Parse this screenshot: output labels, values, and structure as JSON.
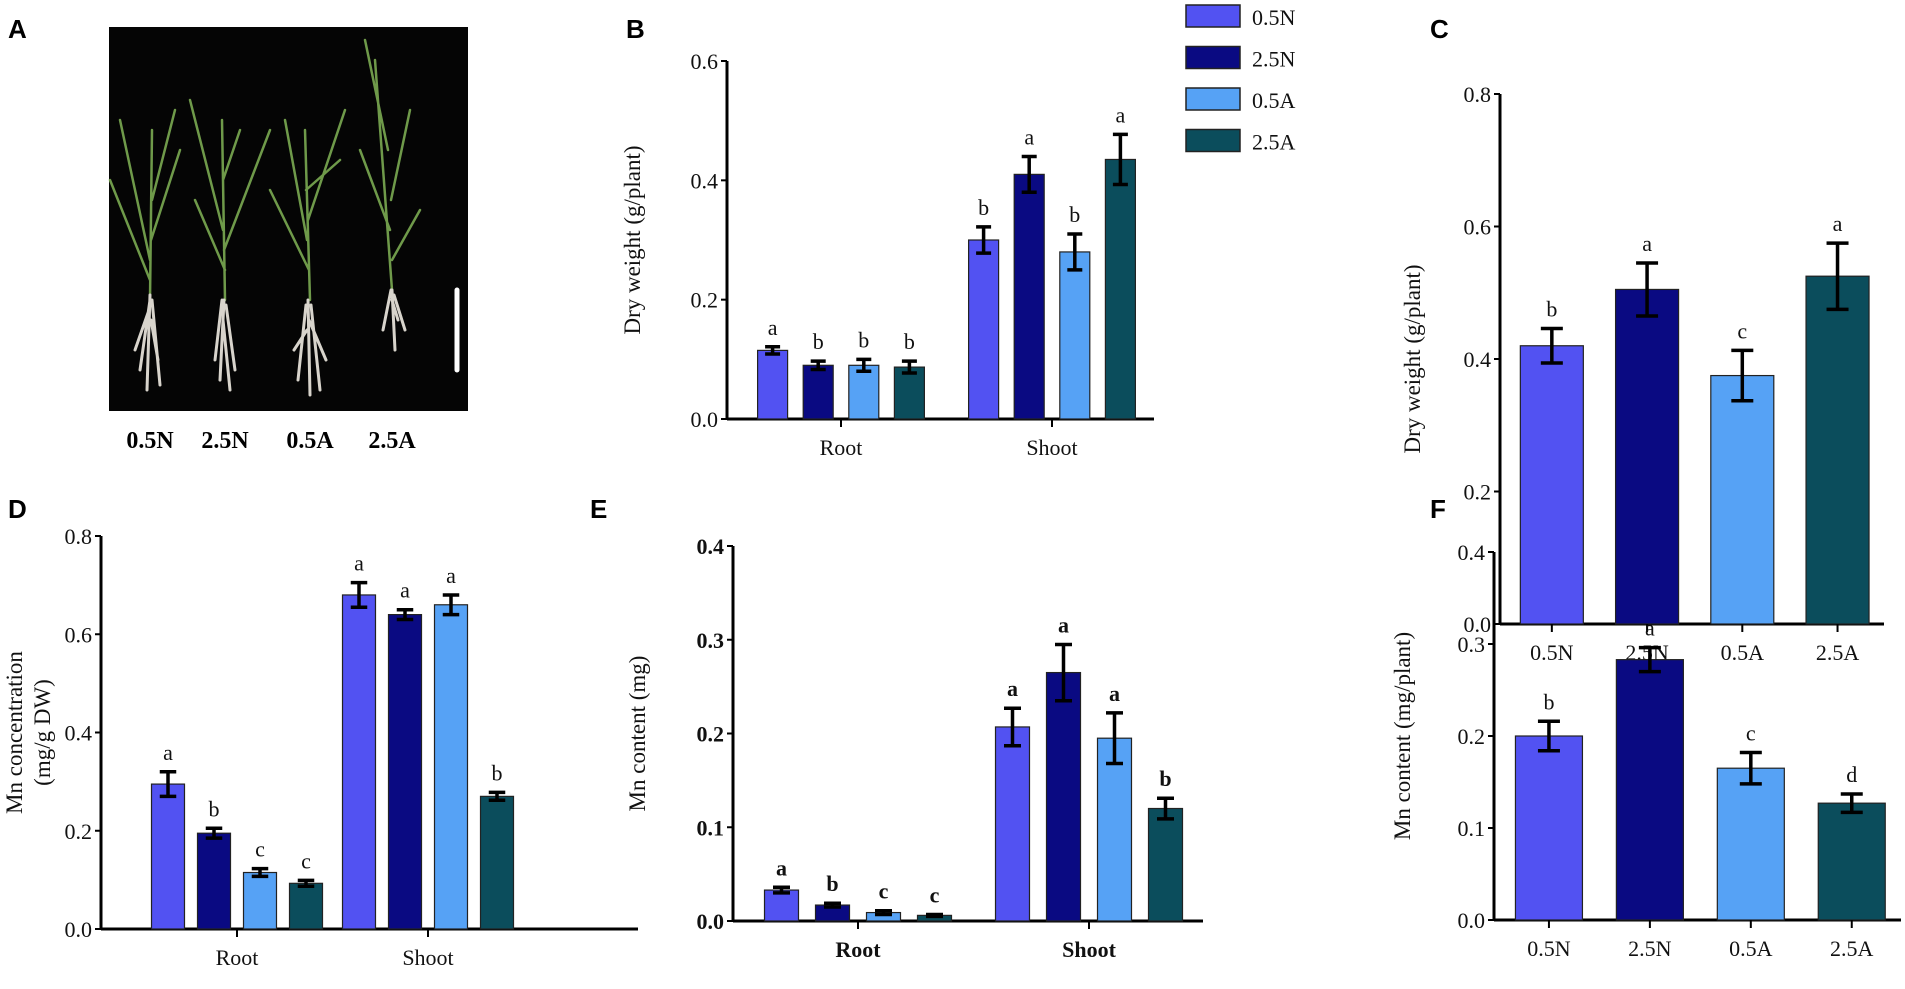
{
  "colors": {
    "0.5N": "#5252f2",
    "2.5N": "#0a0a82",
    "0.5A": "#56a2f5",
    "2.5A": "#0b4d5c",
    "axis": "#000000"
  },
  "panel_a": {
    "label": "A",
    "plant_labels": [
      "0.5N",
      "2.5N",
      "0.5A",
      "2.5A"
    ]
  },
  "legend": [
    "0.5N",
    "2.5N",
    "0.5A",
    "2.5A"
  ],
  "chart_data": [
    {
      "id": "B",
      "type": "bar",
      "panel_label": "B",
      "ylabel": "Dry weight (g/plant)",
      "ylim": [
        0,
        0.6
      ],
      "yticks": [
        "0.0",
        "0.2",
        "0.4",
        "0.6"
      ],
      "categories": [
        "Root",
        "Shoot"
      ],
      "series": [
        {
          "name": "0.5N",
          "values": [
            0.115,
            0.3
          ],
          "errors": [
            0.006,
            0.022
          ],
          "letters": [
            "a",
            "b"
          ]
        },
        {
          "name": "2.5N",
          "values": [
            0.09,
            0.41
          ],
          "errors": [
            0.007,
            0.03
          ],
          "letters": [
            "b",
            "a"
          ]
        },
        {
          "name": "0.5A",
          "values": [
            0.09,
            0.28
          ],
          "errors": [
            0.01,
            0.03
          ],
          "letters": [
            "b",
            "b"
          ]
        },
        {
          "name": "2.5A",
          "values": [
            0.087,
            0.435
          ],
          "errors": [
            0.01,
            0.042
          ],
          "letters": [
            "b",
            "a"
          ]
        }
      ]
    },
    {
      "id": "C",
      "type": "bar",
      "panel_label": "C",
      "ylabel": "Dry weight (g/plant)",
      "ylim": [
        0,
        0.8
      ],
      "yticks": [
        "0.0",
        "0.2",
        "0.4",
        "0.6",
        "0.8"
      ],
      "categories": [
        "0.5N",
        "2.5N",
        "0.5A",
        "2.5A"
      ],
      "values": [
        0.42,
        0.505,
        0.375,
        0.525
      ],
      "errors": [
        0.026,
        0.04,
        0.038,
        0.05
      ],
      "letters": [
        "b",
        "a",
        "c",
        "a"
      ]
    },
    {
      "id": "D",
      "type": "bar",
      "panel_label": "D",
      "ylabel": "Mn concentration",
      "ylabel2": "(mg/g DW)",
      "ylim": [
        0,
        0.8
      ],
      "yticks": [
        "0.0",
        "0.2",
        "0.4",
        "0.6",
        "0.8"
      ],
      "categories": [
        "Root",
        "Shoot"
      ],
      "series": [
        {
          "name": "0.5N",
          "values": [
            0.295,
            0.68
          ],
          "errors": [
            0.025,
            0.025
          ],
          "letters": [
            "a",
            "a"
          ]
        },
        {
          "name": "2.5N",
          "values": [
            0.195,
            0.64
          ],
          "errors": [
            0.01,
            0.01
          ],
          "letters": [
            "b",
            "a"
          ]
        },
        {
          "name": "0.5A",
          "values": [
            0.115,
            0.66
          ],
          "errors": [
            0.008,
            0.02
          ],
          "letters": [
            "c",
            "a"
          ]
        },
        {
          "name": "2.5A",
          "values": [
            0.093,
            0.27
          ],
          "errors": [
            0.006,
            0.008
          ],
          "letters": [
            "c",
            "b"
          ]
        }
      ]
    },
    {
      "id": "E",
      "type": "bar",
      "panel_label": "E",
      "ylabel": "Mn content (mg)",
      "ylim": [
        0,
        0.4
      ],
      "yticks": [
        "0.0",
        "0.1",
        "0.2",
        "0.3",
        "0.4"
      ],
      "categories": [
        "Root",
        "Shoot"
      ],
      "series": [
        {
          "name": "0.5N",
          "values": [
            0.033,
            0.207
          ],
          "errors": [
            0.003,
            0.02
          ],
          "letters": [
            "a",
            "a"
          ]
        },
        {
          "name": "2.5N",
          "values": [
            0.017,
            0.265
          ],
          "errors": [
            0.002,
            0.03
          ],
          "letters": [
            "b",
            "a"
          ]
        },
        {
          "name": "0.5A",
          "values": [
            0.009,
            0.195
          ],
          "errors": [
            0.002,
            0.027
          ],
          "letters": [
            "c",
            "a"
          ]
        },
        {
          "name": "2.5A",
          "values": [
            0.006,
            0.12
          ],
          "errors": [
            0.001,
            0.011
          ],
          "letters": [
            "c",
            "b"
          ]
        }
      ]
    },
    {
      "id": "F",
      "type": "bar",
      "panel_label": "F",
      "ylabel": "Mn content (mg/plant)",
      "ylim": [
        0,
        0.4
      ],
      "yticks": [
        "0.0",
        "0.1",
        "0.2",
        "0.3",
        "0.4"
      ],
      "categories": [
        "0.5N",
        "2.5N",
        "0.5A",
        "2.5A"
      ],
      "values": [
        0.2,
        0.283,
        0.165,
        0.127
      ],
      "errors": [
        0.016,
        0.013,
        0.017,
        0.01
      ],
      "letters": [
        "b",
        "a",
        "c",
        "d"
      ]
    }
  ]
}
